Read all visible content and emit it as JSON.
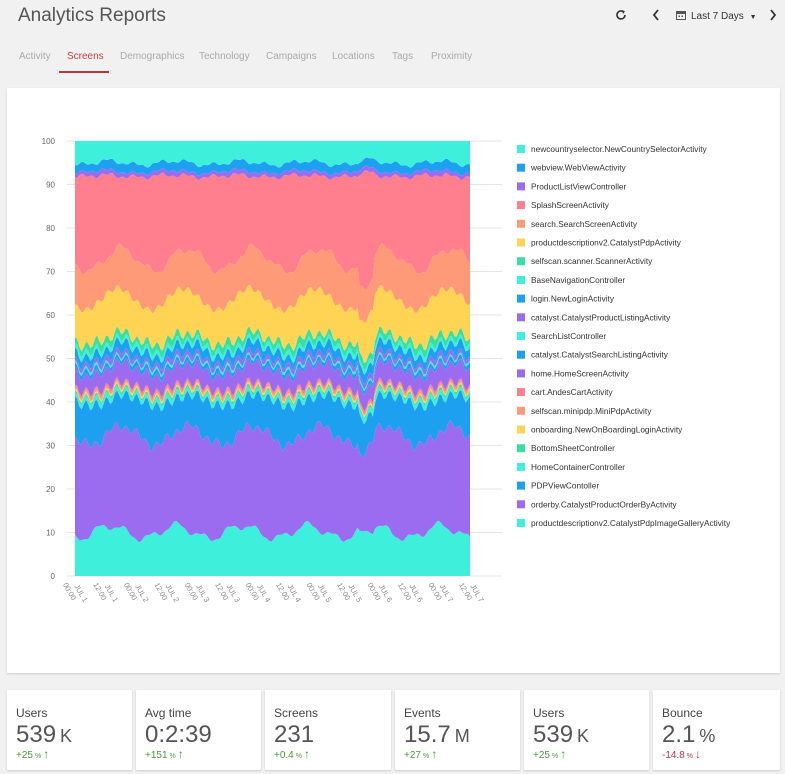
{
  "header": {
    "title": "Analytics Reports",
    "date_range": "Last 7 Days"
  },
  "tabs": [
    {
      "label": "Activity"
    },
    {
      "label": "Screens",
      "active": true
    },
    {
      "label": "Demographics"
    },
    {
      "label": "Technology"
    },
    {
      "label": "Campaigns"
    },
    {
      "label": "Locations"
    },
    {
      "label": "Tags"
    },
    {
      "label": "Proximity"
    }
  ],
  "chart_data": {
    "type": "area",
    "stacked": true,
    "ylim": [
      0,
      100
    ],
    "yticks": [
      "0",
      "10",
      "20",
      "30",
      "40",
      "50",
      "60",
      "70",
      "80",
      "90",
      "100"
    ],
    "x_ticks": [
      [
        "JUL 1",
        "00:00"
      ],
      [
        "JUL 1",
        "12:00"
      ],
      [
        "JUL 2",
        "00:00"
      ],
      [
        "JUL 2",
        "12:00"
      ],
      [
        "JUL 3",
        "00:00"
      ],
      [
        "JUL 3",
        "12:00"
      ],
      [
        "JUL 4",
        "00:00"
      ],
      [
        "JUL 4",
        "12:00"
      ],
      [
        "JUL 5",
        "00:00"
      ],
      [
        "JUL 5",
        "12:00"
      ],
      [
        "JUL 6",
        "00:00"
      ],
      [
        "JUL 6",
        "12:00"
      ],
      [
        "JUL 7",
        "00:00"
      ],
      [
        "JUL 7",
        "12:00"
      ]
    ],
    "legend_position": "right",
    "series": [
      {
        "name": "newcountryselector.NewCountrySelectorActivity",
        "color": "#3ef0dc",
        "value": 5
      },
      {
        "name": "webview.WebViewActivity",
        "color": "#1ea0f0",
        "value": 2
      },
      {
        "name": "ProductListViewController",
        "color": "#9b6cf0",
        "value": 1
      },
      {
        "name": "SplashScreenActivity",
        "color": "#ff7f8e",
        "value": 19
      },
      {
        "name": "search.SearchScreenActivity",
        "color": "#ff9a78",
        "value": 9
      },
      {
        "name": "productdescriptionv2.CatalystPdpActivity",
        "color": "#ffd454",
        "value": 9
      },
      {
        "name": "selfscan.scanner.ScannerActivity",
        "color": "#38e0a0",
        "value": 1.5
      },
      {
        "name": "BaseNavigationController",
        "color": "#3ef0dc",
        "value": 1
      },
      {
        "name": "login.NewLoginActivity",
        "color": "#1ea0f0",
        "value": 2
      },
      {
        "name": "catalyst.CatalystProductListingActivity",
        "color": "#9b6cf0",
        "value": 1
      },
      {
        "name": "SearchListController",
        "color": "#3ef0dc",
        "value": 0.5
      },
      {
        "name": "catalyst.CatalystSearchListingActivity",
        "color": "#1ea0f0",
        "value": 1
      },
      {
        "name": "home.HomeScreenActivity",
        "color": "#9b6cf0",
        "value": 4
      },
      {
        "name": "cart.AndesCartActivity",
        "color": "#ff7f8e",
        "value": 0.5
      },
      {
        "name": "selfscan.minipdp.MiniPdpActivity",
        "color": "#ff9a78",
        "value": 0.5
      },
      {
        "name": "onboarding.NewOnBoardingLoginActivity",
        "color": "#ffd454",
        "value": 0.5
      },
      {
        "name": "BottomSheetController",
        "color": "#38e0a0",
        "value": 0.5
      },
      {
        "name": "HomeContainerController",
        "color": "#3ef0dc",
        "value": 1
      },
      {
        "name": "PDPViewContoller",
        "color": "#1ea0f0",
        "value": 8
      },
      {
        "name": "orderby.CatalystProductOrderByActivity",
        "color": "#9b6cf0",
        "value": 22
      },
      {
        "name": "productdescriptionv2.CatalystPdpImageGalleryActivity",
        "color": "#3ef0dc",
        "value": 10
      }
    ]
  },
  "stats": [
    {
      "label": "Users",
      "value": "539",
      "unit": "K",
      "delta": "+25",
      "pct": "%",
      "dir": "up",
      "arrow": "↑"
    },
    {
      "label": "Avg time",
      "value": "0:2:39",
      "unit": "",
      "delta": "+151",
      "pct": "%",
      "dir": "up",
      "arrow": "↑"
    },
    {
      "label": "Screens",
      "value": "231",
      "unit": "",
      "delta": "+0.4",
      "pct": "%",
      "dir": "up",
      "arrow": "↑"
    },
    {
      "label": "Events",
      "value": "15.7",
      "unit": "M",
      "delta": "+27",
      "pct": "%",
      "dir": "up",
      "arrow": "↑"
    },
    {
      "label": "Users",
      "value": "539",
      "unit": "K",
      "delta": "+25",
      "pct": "%",
      "dir": "up",
      "arrow": "↑"
    },
    {
      "label": "Bounce",
      "value": "2.1",
      "unit": "%",
      "delta": "-14.8",
      "pct": "%",
      "dir": "down",
      "arrow": "↓"
    }
  ]
}
